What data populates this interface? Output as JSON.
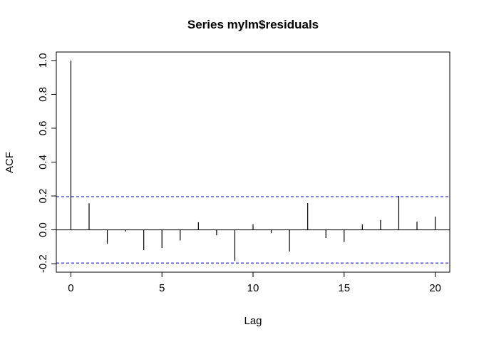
{
  "chart_data": {
    "type": "bar",
    "title": "Series  mylm$residuals",
    "xlabel": "Lag",
    "ylabel": "ACF",
    "xlim": [
      -0.8,
      20.8
    ],
    "ylim": [
      -0.25,
      1.05
    ],
    "x_ticks": [
      "0",
      "5",
      "10",
      "15",
      "20"
    ],
    "y_ticks": [
      "-0.2",
      "0.0",
      "0.2",
      "0.4",
      "0.6",
      "0.8",
      "1.0"
    ],
    "confidence_bound": 0.196,
    "bound_color": "#0000cd",
    "grid": false,
    "lags": [
      0,
      1,
      2,
      3,
      4,
      5,
      6,
      7,
      8,
      9,
      10,
      11,
      12,
      13,
      14,
      15,
      16,
      17,
      18,
      19,
      20
    ],
    "values": [
      1.0,
      0.157,
      -0.082,
      -0.01,
      -0.12,
      -0.107,
      -0.063,
      0.045,
      -0.032,
      -0.183,
      0.032,
      -0.02,
      -0.128,
      0.158,
      -0.048,
      -0.072,
      0.032,
      0.058,
      0.2,
      0.048,
      0.078
    ]
  }
}
